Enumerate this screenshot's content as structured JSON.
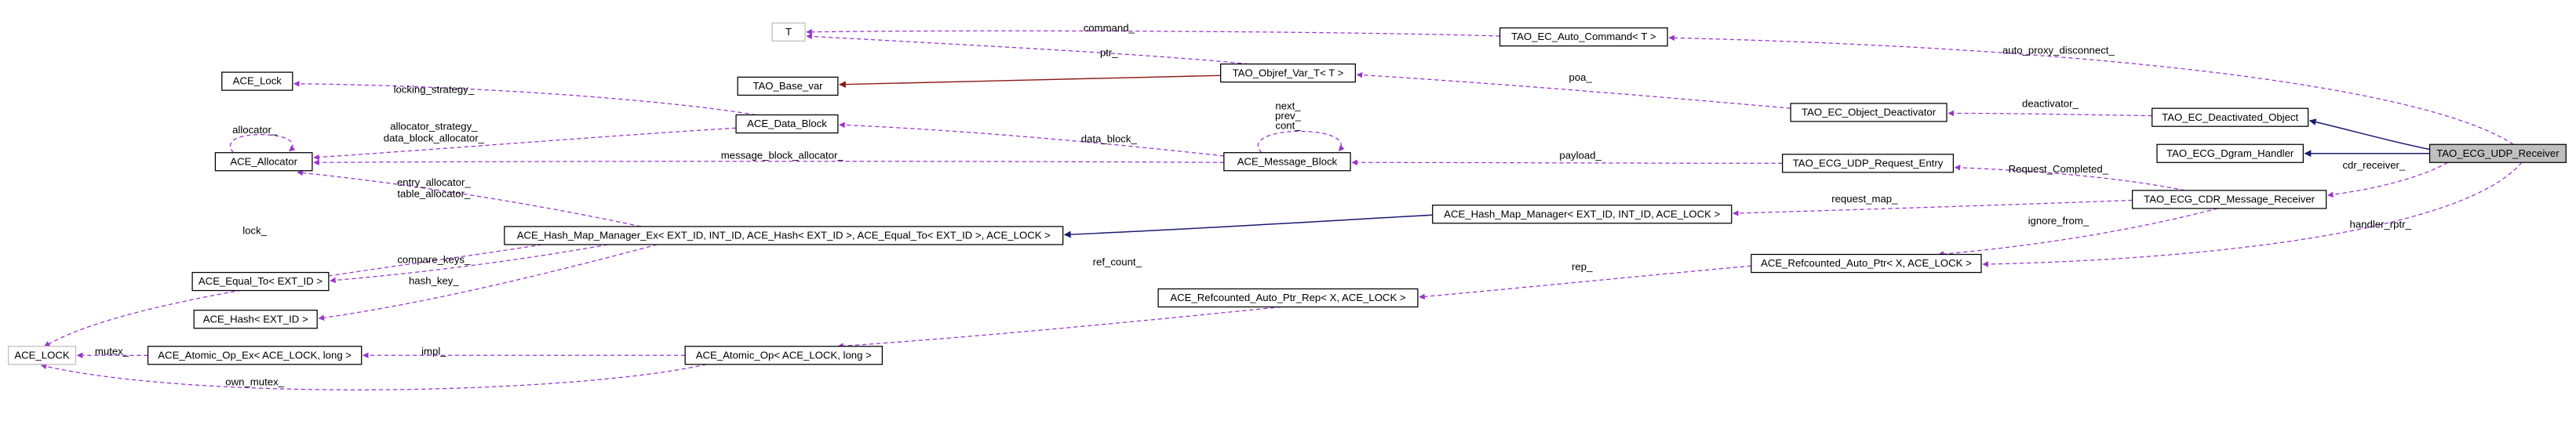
{
  "nodes": [
    {
      "label": "T"
    },
    {
      "label": "TAO_EC_Auto_Command< T >"
    },
    {
      "label": "ACE_Lock"
    },
    {
      "label": "TAO_Objref_Var_T< T >"
    },
    {
      "label": "TAO_Base_var"
    },
    {
      "label": "ACE_Data_Block"
    },
    {
      "label": "TAO_EC_Object_Deactivator"
    },
    {
      "label": "TAO_EC_Deactivated_Object"
    },
    {
      "label": "ACE_Allocator"
    },
    {
      "label": "ACE_Message_Block"
    },
    {
      "label": "TAO_ECG_UDP_Request_Entry"
    },
    {
      "label": "TAO_ECG_Dgram_Handler"
    },
    {
      "label": "TAO_ECG_UDP_Receiver"
    },
    {
      "label": "ACE_Hash_Map_Manager< EXT_ID, INT_ID, ACE_LOCK >"
    },
    {
      "label": "TAO_ECG_CDR_Message_Receiver"
    },
    {
      "label": "ACE_Hash_Map_Manager_Ex< EXT_ID, INT_ID, ACE_Hash< EXT_ID >, ACE_Equal_To< EXT_ID >, ACE_LOCK >"
    },
    {
      "label": "ACE_Equal_To< EXT_ID >"
    },
    {
      "label": "ACE_Refcounted_Auto_Ptr< X, ACE_LOCK >"
    },
    {
      "label": "ACE_Refcounted_Auto_Ptr_Rep< X, ACE_LOCK >"
    },
    {
      "label": "ACE_Hash< EXT_ID >"
    },
    {
      "label": "ACE_LOCK"
    },
    {
      "label": "ACE_Atomic_Op_Ex< ACE_LOCK, long >"
    },
    {
      "label": "ACE_Atomic_Op< ACE_LOCK, long >"
    }
  ],
  "edges": [
    {
      "labels": [
        "command_"
      ]
    },
    {
      "labels": [
        "ptr_"
      ]
    },
    {
      "labels": [
        "poa_"
      ]
    },
    {
      "labels": [
        "auto_proxy_disconnect_"
      ]
    },
    {
      "labels": [
        "deactivator_"
      ]
    },
    {
      "labels": [
        "cdr_receiver_"
      ]
    },
    {
      "labels": [
        "handler_rptr_"
      ]
    },
    {
      "labels": [
        "Request_Completed_"
      ]
    },
    {
      "labels": [
        "request_map_"
      ]
    },
    {
      "labels": [
        "ignore_from_"
      ]
    },
    {
      "labels": [
        "rep_"
      ]
    },
    {
      "labels": [
        "ref_count_"
      ]
    },
    {
      "labels": [
        "payload_"
      ]
    },
    {
      "labels": [
        "next_",
        "prev_",
        "cont_"
      ]
    },
    {
      "labels": [
        "data_block_"
      ]
    },
    {
      "labels": [
        "message_block_allocator_"
      ]
    },
    {
      "labels": [
        "allocator_strategy_",
        "data_block_allocator_"
      ]
    },
    {
      "labels": [
        "locking_strategy_"
      ]
    },
    {
      "labels": [
        "allocator_"
      ]
    },
    {
      "labels": [
        "entry_allocator_",
        "table_allocator_"
      ]
    },
    {
      "labels": [
        "lock_"
      ]
    },
    {
      "labels": [
        "compare_keys_"
      ]
    },
    {
      "labels": [
        "hash_key_"
      ]
    },
    {
      "labels": [
        "mutex_"
      ]
    },
    {
      "labels": [
        "impl_"
      ]
    },
    {
      "labels": [
        "own_mutex_"
      ]
    }
  ]
}
